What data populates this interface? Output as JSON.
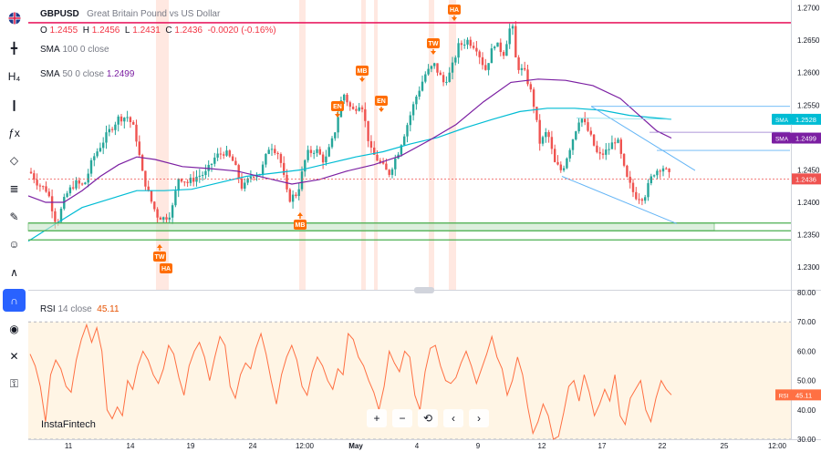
{
  "symbol": {
    "ticker": "GBPUSD",
    "description": "Great Britain Pound vs US Dollar"
  },
  "ohlc": {
    "o_label": "O",
    "o": "1.2455",
    "h_label": "H",
    "h": "1.2456",
    "l_label": "L",
    "l": "1.2431",
    "c_label": "C",
    "c": "1.2436",
    "change": "-0.0020 (-0.16%)"
  },
  "sma100": {
    "label": "SMA",
    "period": "100",
    "offset": "0",
    "source": "close"
  },
  "sma50": {
    "label": "SMA",
    "period": "50",
    "offset": "0",
    "source": "close",
    "value": "1.2499"
  },
  "rsi": {
    "label": "RSI",
    "period": "14",
    "source": "close",
    "value": "45.11"
  },
  "brand": "InstaFintech",
  "toolbar": [
    "flag-icon",
    "crosshair-icon",
    "h4-indicator-icon",
    "candle-icon",
    "fx-icon",
    "node-icon",
    "multi-line-icon",
    "brush-icon",
    "emoji-icon",
    "pattern-icon",
    "magnet-icon",
    "eye-icon",
    "delete-icon",
    "lock-icon"
  ],
  "controls": [
    {
      "name": "zoom-in-button",
      "glyph": "+"
    },
    {
      "name": "zoom-out-button",
      "glyph": "−"
    },
    {
      "name": "reset-button",
      "glyph": "⟲"
    },
    {
      "name": "scroll-left-button",
      "glyph": "‹"
    },
    {
      "name": "scroll-right-button",
      "glyph": "›"
    }
  ],
  "colors": {
    "up": "#26a69a",
    "down": "#ef5350",
    "sma50": "#7b1fa2",
    "sma100": "#00bcd4",
    "resistance": "#e91e63",
    "support_zone": "#4caf50",
    "rsi": "#ff7043",
    "label": "#ff6d00"
  },
  "chart_data": [
    {
      "type": "candlestick",
      "title": "GBPUSD",
      "y_ticks": [
        "1.2700",
        "1.2650",
        "1.2600",
        "1.2550",
        "1.2500",
        "1.2450",
        "1.2400",
        "1.2350",
        "1.2300"
      ],
      "ylim": [
        1.2265,
        1.2705
      ],
      "x_ticks": [
        "11",
        "14",
        "19",
        "24",
        "12:00",
        "May",
        "4",
        "9",
        "12",
        "17",
        "22",
        "25",
        "12:00"
      ],
      "price_labels": [
        {
          "text": "SMA",
          "value": "1.2528",
          "y": 1.2528,
          "color": "#00bcd4"
        },
        {
          "text": "SMA",
          "value": "1.2499",
          "y": 1.2499,
          "color": "#7b1fa2"
        },
        {
          "text": "",
          "value": "1.2436",
          "y": 1.2436,
          "color": "#ef5350"
        }
      ],
      "pattern_labels": [
        {
          "text": "HA",
          "position": "top"
        },
        {
          "text": "TW",
          "position": "top"
        },
        {
          "text": "MB",
          "position": "top"
        },
        {
          "text": "EN",
          "position": "top"
        },
        {
          "text": "EN",
          "position": "top"
        },
        {
          "text": "MB",
          "position": "bottom"
        },
        {
          "text": "TW",
          "position": "bottom"
        },
        {
          "text": "HA",
          "position": "bottom"
        }
      ],
      "resistance_level": 1.2677,
      "support_zone": [
        1.2356,
        1.2368
      ],
      "support_lines": [
        1.2368,
        1.2356,
        1.2342
      ],
      "sma100_last": 1.2528,
      "sma50_last": 1.2499,
      "last_price": 1.2436
    },
    {
      "type": "line",
      "title": "RSI 14 close",
      "y_ticks": [
        "80.00",
        "70.00",
        "60.00",
        "50.00",
        "40.00",
        "30.00"
      ],
      "ylim": [
        30,
        80
      ],
      "levels": [
        70,
        30
      ],
      "last": 45.11
    }
  ]
}
